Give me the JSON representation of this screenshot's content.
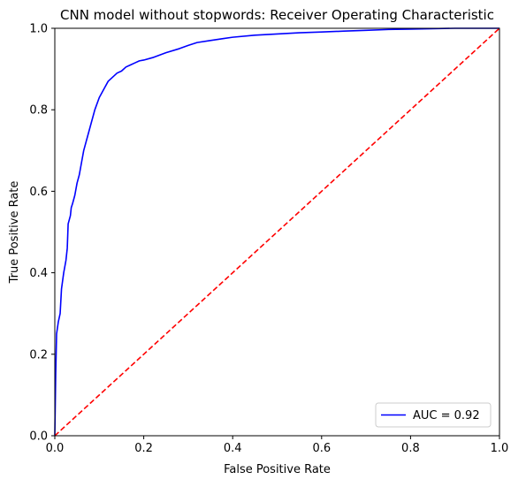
{
  "chart_data": {
    "type": "line",
    "title": "CNN model without stopwords: Receiver Operating Characteristic",
    "xlabel": "False Positive Rate",
    "ylabel": "True Positive Rate",
    "xlim": [
      0,
      1
    ],
    "ylim": [
      0,
      1
    ],
    "x_ticks": [
      "0.0",
      "0.2",
      "0.4",
      "0.6",
      "0.8",
      "1.0"
    ],
    "y_ticks": [
      "0.0",
      "0.2",
      "0.4",
      "0.6",
      "0.8",
      "1.0"
    ],
    "grid": false,
    "legend_position": "lower-right",
    "series": [
      {
        "name": "AUC = 0.92",
        "color": "#0000ff",
        "style": "solid",
        "x": [
          0.0,
          0.002,
          0.004,
          0.008,
          0.012,
          0.015,
          0.02,
          0.025,
          0.028,
          0.03,
          0.035,
          0.037,
          0.04,
          0.045,
          0.05,
          0.055,
          0.06,
          0.065,
          0.07,
          0.075,
          0.08,
          0.09,
          0.1,
          0.11,
          0.12,
          0.13,
          0.14,
          0.15,
          0.16,
          0.17,
          0.18,
          0.19,
          0.2,
          0.22,
          0.25,
          0.28,
          0.3,
          0.32,
          0.35,
          0.38,
          0.4,
          0.45,
          0.5,
          0.55,
          0.6,
          0.65,
          0.7,
          0.75,
          0.8,
          0.85,
          0.9,
          0.95,
          1.0
        ],
        "y": [
          0.0,
          0.15,
          0.25,
          0.28,
          0.3,
          0.36,
          0.4,
          0.43,
          0.46,
          0.52,
          0.54,
          0.56,
          0.57,
          0.59,
          0.62,
          0.64,
          0.67,
          0.7,
          0.72,
          0.74,
          0.76,
          0.8,
          0.83,
          0.85,
          0.87,
          0.88,
          0.89,
          0.895,
          0.905,
          0.91,
          0.915,
          0.92,
          0.922,
          0.928,
          0.94,
          0.95,
          0.958,
          0.965,
          0.97,
          0.975,
          0.978,
          0.983,
          0.986,
          0.989,
          0.991,
          0.993,
          0.995,
          0.997,
          0.998,
          0.999,
          1.0,
          1.0,
          1.0
        ]
      },
      {
        "name": "",
        "color": "#ff0000",
        "style": "dashed",
        "x": [
          0,
          1
        ],
        "y": [
          0,
          1
        ]
      }
    ]
  }
}
